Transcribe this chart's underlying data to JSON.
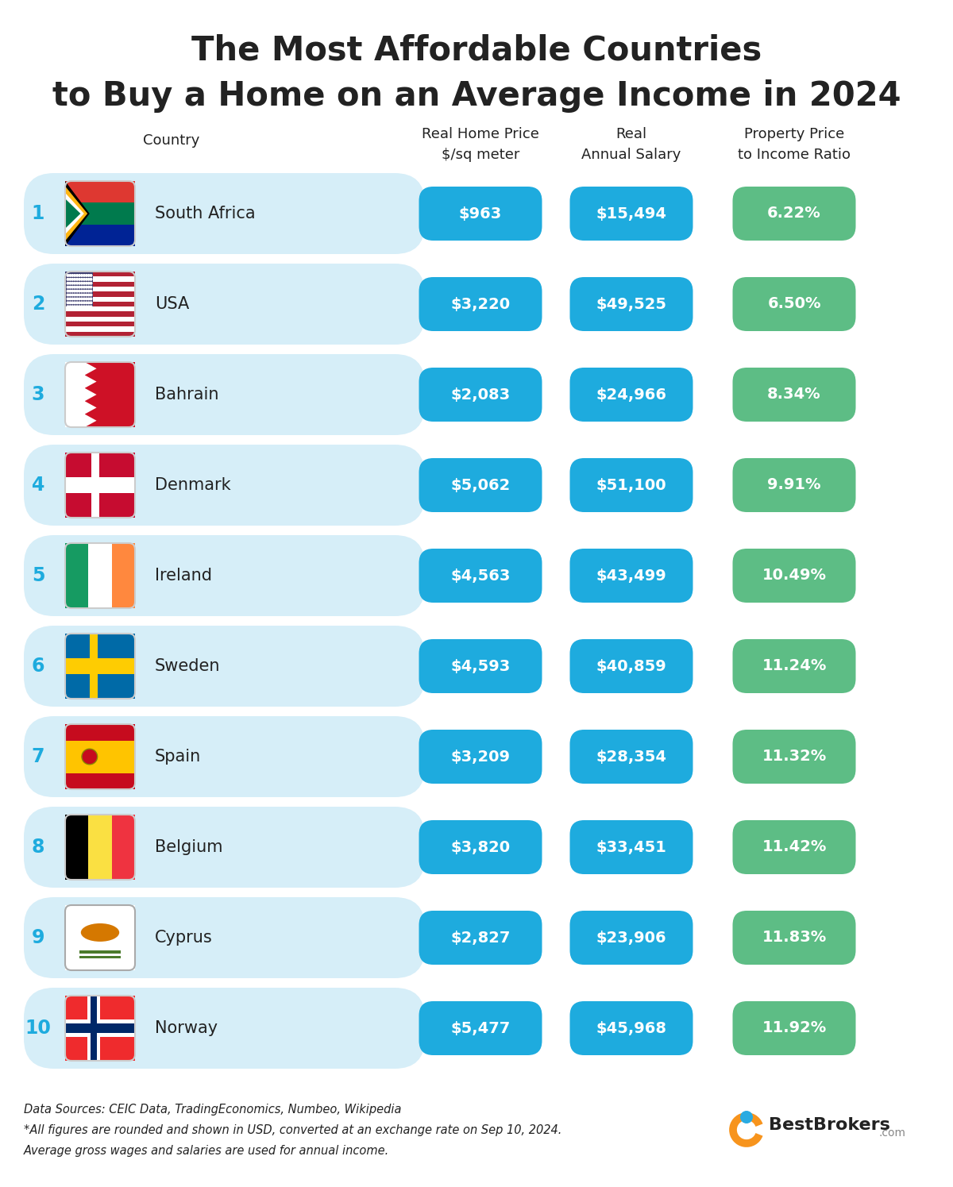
{
  "title_line1": "The Most Affordable Countries",
  "title_line2": "to Buy a Home on an Average Income in 2024",
  "col_header_label": "Country",
  "col_headers": [
    [
      "Real Home Price",
      "$/sq meter"
    ],
    [
      "Real",
      "Annual Salary"
    ],
    [
      "Property Price",
      "to Income Ratio"
    ]
  ],
  "countries": [
    {
      "rank": 1,
      "name": "South Africa",
      "price": "$963",
      "salary": "$15,494",
      "ratio": "6.22%"
    },
    {
      "rank": 2,
      "name": "USA",
      "price": "$3,220",
      "salary": "$49,525",
      "ratio": "6.50%"
    },
    {
      "rank": 3,
      "name": "Bahrain",
      "price": "$2,083",
      "salary": "$24,966",
      "ratio": "8.34%"
    },
    {
      "rank": 4,
      "name": "Denmark",
      "price": "$5,062",
      "salary": "$51,100",
      "ratio": "9.91%"
    },
    {
      "rank": 5,
      "name": "Ireland",
      "price": "$4,563",
      "salary": "$43,499",
      "ratio": "10.49%"
    },
    {
      "rank": 6,
      "name": "Sweden",
      "price": "$4,593",
      "salary": "$40,859",
      "ratio": "11.24%"
    },
    {
      "rank": 7,
      "name": "Spain",
      "price": "$3,209",
      "salary": "$28,354",
      "ratio": "11.32%"
    },
    {
      "rank": 8,
      "name": "Belgium",
      "price": "$3,820",
      "salary": "$33,451",
      "ratio": "11.42%"
    },
    {
      "rank": 9,
      "name": "Cyprus",
      "price": "$2,827",
      "salary": "$23,906",
      "ratio": "11.83%"
    },
    {
      "rank": 10,
      "name": "Norway",
      "price": "$5,477",
      "salary": "$45,968",
      "ratio": "11.92%"
    }
  ],
  "blue_color": "#1EABDE",
  "green_color": "#5DBD85",
  "row_bg_color": "#D6EEF8",
  "bg_color": "#FFFFFF",
  "text_white": "#FFFFFF",
  "text_dark": "#222222",
  "rank_text_color": "#1EABDE",
  "footnote1": "Data Sources: CEIC Data, TradingEconomics, Numbeo, Wikipedia",
  "footnote2": "*All figures are rounded and shown in USD, converted at an exchange rate on Sep 10, 2024.",
  "footnote3": "Average gross wages and salaries are used for annual income."
}
